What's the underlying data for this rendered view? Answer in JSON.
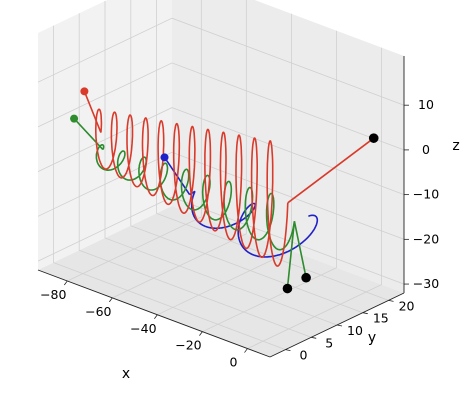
{
  "chart_data": {
    "type": "line3d",
    "title": "",
    "xlabel": "x",
    "ylabel": "y",
    "zlabel": "z",
    "xlim": [
      -93,
      10
    ],
    "ylim": [
      -3,
      23
    ],
    "zlim": [
      -32,
      21
    ],
    "xticks": [
      -80,
      -60,
      -40,
      -20,
      0
    ],
    "yticks": [
      0,
      5,
      10,
      15,
      20
    ],
    "zticks": [
      -30,
      -20,
      -10,
      0,
      10
    ],
    "grid": true,
    "series": [
      {
        "color": "#1f22c8",
        "kind": "helix",
        "x_range": [
          -55,
          -2
        ],
        "center": [
          8,
          -15
        ],
        "radius_start": 1.8,
        "radius_end": 5.5,
        "turns": 2.2,
        "start_point": [
          -62,
          8,
          -7
        ]
      },
      {
        "color": "#2e8b2e",
        "kind": "oscillation",
        "x_range": [
          -93,
          -8
        ],
        "center": [
          8,
          -12
        ],
        "amplitude_y": 1.6,
        "amplitude_z": [
          2,
          6
        ],
        "cycles": 9,
        "start_point": [
          -93,
          4,
          -2
        ],
        "end_points": [
          [
            -12,
            10,
            -28
          ],
          [
            -6,
            11,
            -25
          ]
        ]
      },
      {
        "color": "#d93a2a",
        "kind": "oscillation",
        "x_range": [
          -93,
          -10
        ],
        "center": [
          8,
          -8
        ],
        "amplitude_y": 1.2,
        "amplitude_z": [
          6,
          14
        ],
        "cycles": 12,
        "start_point": [
          -93,
          6,
          3
        ],
        "end_points": [
          [
            8,
            18,
            5
          ]
        ]
      }
    ]
  }
}
